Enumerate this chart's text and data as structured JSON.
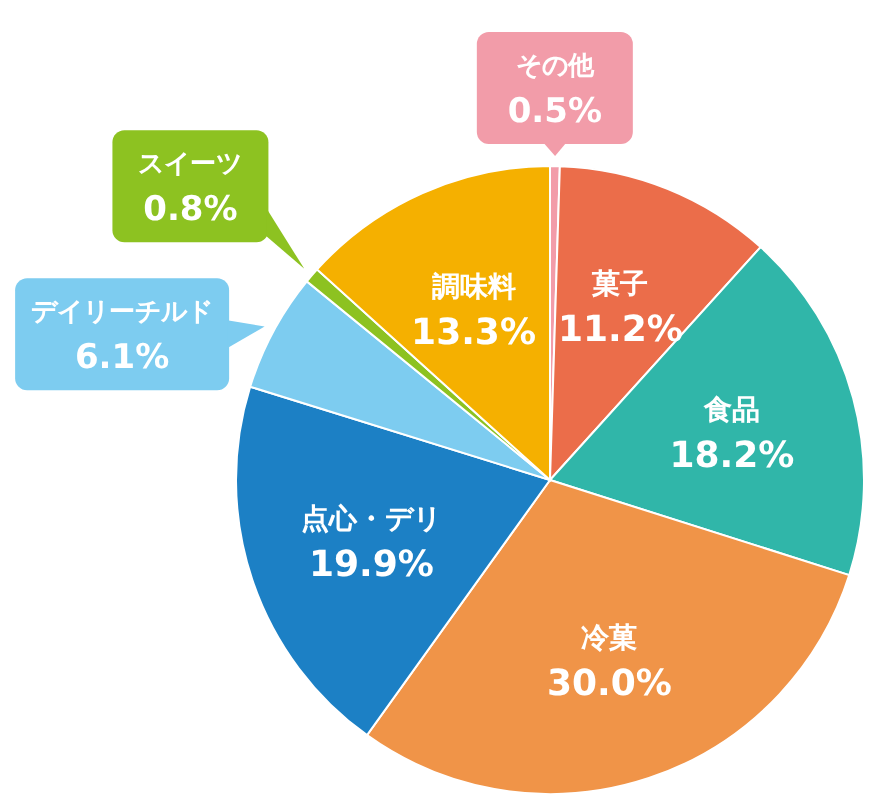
{
  "chart_data": {
    "type": "pie",
    "categories": [
      "その他",
      "菓子",
      "食品",
      "冷菓",
      "点心・デリ",
      "デイリーチルド",
      "スイーツ",
      "調味料"
    ],
    "values": [
      0.5,
      11.2,
      18.2,
      30.0,
      19.9,
      6.1,
      0.8,
      13.3
    ],
    "colors": [
      "#f29ca9",
      "#eb6d4a",
      "#30b6a9",
      "#f09448",
      "#1c80c5",
      "#7dccf0",
      "#8dc221",
      "#f5b000"
    ],
    "value_labels": [
      "0.5%",
      "11.2%",
      "18.2%",
      "30.0%",
      "19.9%",
      "6.1%",
      "0.8%",
      "13.3%"
    ]
  }
}
